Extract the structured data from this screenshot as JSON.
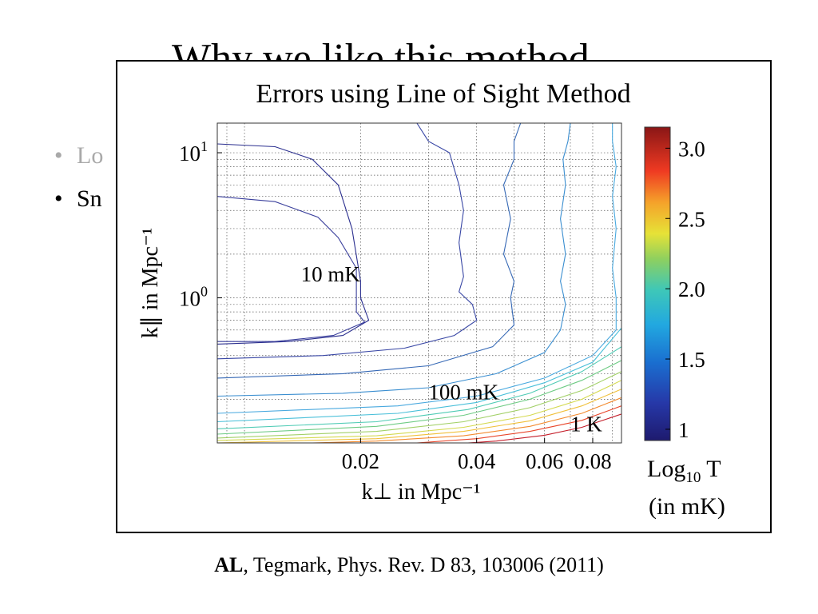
{
  "slide": {
    "title_partial": "Why we like this method",
    "bullets": [
      {
        "text": "Lo",
        "state": "dimmed"
      },
      {
        "text": "Sn",
        "state": "active"
      }
    ],
    "citation": {
      "bold_author": "AL",
      "rest": ", Tegmark, Phys. Rev. D 83, 103006 (2011)"
    }
  },
  "figure": {
    "title": "Errors using Line of Sight Method",
    "colorbar_label_line1": "Log",
    "colorbar_label_sub": "10",
    "colorbar_label_line1_tail": " T",
    "colorbar_label_line2": "(in mK)"
  },
  "chart_data": {
    "type": "contour",
    "title": "Errors using Line of Sight Method",
    "xlabel": "k⊥ in Mpc⁻¹",
    "ylabel": "k∥ in Mpc⁻¹",
    "x_scale": "log",
    "y_scale": "log",
    "xlim": [
      0.0085,
      0.095
    ],
    "ylim": [
      0.1,
      16
    ],
    "x_ticks": [
      {
        "value": 0.02,
        "label": "0.02"
      },
      {
        "value": 0.04,
        "label": "0.04"
      },
      {
        "value": 0.06,
        "label": "0.06"
      },
      {
        "value": 0.08,
        "label": "0.08"
      }
    ],
    "y_ticks": [
      {
        "value": 1,
        "label": "10",
        "exp": "0"
      },
      {
        "value": 10,
        "label": "10",
        "exp": "1"
      }
    ],
    "grid": true,
    "annotations": [
      {
        "text": "10 mK",
        "x": 0.014,
        "y": 1.3
      },
      {
        "text": "100 mK",
        "x": 0.03,
        "y": 0.2
      },
      {
        "text": "1 K",
        "x": 0.07,
        "y": 0.12
      }
    ],
    "colorbar": {
      "colormap": "jet",
      "range": [
        0.92,
        3.15
      ],
      "ticks": [
        1,
        1.5,
        2.0,
        2.5,
        3.0
      ],
      "tick_labels": [
        "1",
        "1.5",
        "2.0",
        "2.5",
        "3.0"
      ]
    },
    "contours": [
      {
        "level": 1.0,
        "color": "#2b2f8f",
        "points": [
          [
            0.0085,
            11.5
          ],
          [
            0.012,
            11
          ],
          [
            0.015,
            9
          ],
          [
            0.0175,
            6
          ],
          [
            0.019,
            3
          ],
          [
            0.02,
            1.3
          ],
          [
            0.02,
            1
          ],
          [
            0.021,
            0.7
          ],
          [
            0.018,
            0.55
          ],
          [
            0.013,
            0.5
          ],
          [
            0.0085,
            0.48
          ]
        ]
      },
      {
        "level": 1.1,
        "color": "#3a3f9c",
        "points": [
          [
            0.0085,
            5
          ],
          [
            0.012,
            4.6
          ],
          [
            0.0155,
            3.6
          ],
          [
            0.0175,
            2.6
          ],
          [
            0.0195,
            1.6
          ],
          [
            0.0195,
            1.1
          ],
          [
            0.0195,
            0.8
          ],
          [
            0.0205,
            0.68
          ],
          [
            0.017,
            0.55
          ],
          [
            0.012,
            0.5
          ],
          [
            0.0085,
            0.5
          ]
        ]
      },
      {
        "level": 1.2,
        "color": "#3947a5",
        "points": [
          [
            0.028,
            16
          ],
          [
            0.03,
            12
          ],
          [
            0.034,
            10
          ],
          [
            0.036,
            6
          ],
          [
            0.037,
            4
          ],
          [
            0.036,
            2.4
          ],
          [
            0.037,
            1.4
          ],
          [
            0.036,
            1.1
          ],
          [
            0.039,
            0.9
          ],
          [
            0.04,
            0.7
          ],
          [
            0.035,
            0.55
          ],
          [
            0.026,
            0.45
          ],
          [
            0.016,
            0.4
          ],
          [
            0.0085,
            0.38
          ]
        ]
      },
      {
        "level": 1.3,
        "color": "#3568b5",
        "points": [
          [
            0.052,
            16
          ],
          [
            0.05,
            12
          ],
          [
            0.05,
            9
          ],
          [
            0.047,
            6
          ],
          [
            0.049,
            3.5
          ],
          [
            0.047,
            2
          ],
          [
            0.05,
            1.3
          ],
          [
            0.049,
            1
          ],
          [
            0.05,
            0.65
          ],
          [
            0.044,
            0.46
          ],
          [
            0.03,
            0.34
          ],
          [
            0.018,
            0.3
          ],
          [
            0.0085,
            0.28
          ]
        ]
      },
      {
        "level": 1.4,
        "color": "#3a8ed0",
        "points": [
          [
            0.07,
            16
          ],
          [
            0.069,
            12
          ],
          [
            0.067,
            9
          ],
          [
            0.068,
            6
          ],
          [
            0.066,
            3.5
          ],
          [
            0.068,
            2
          ],
          [
            0.066,
            1.3
          ],
          [
            0.068,
            0.9
          ],
          [
            0.066,
            0.6
          ],
          [
            0.06,
            0.42
          ],
          [
            0.045,
            0.3
          ],
          [
            0.03,
            0.24
          ],
          [
            0.018,
            0.22
          ],
          [
            0.0085,
            0.21
          ]
        ]
      },
      {
        "level": 1.5,
        "color": "#49a9df",
        "points": [
          [
            0.09,
            16
          ],
          [
            0.09,
            12
          ],
          [
            0.092,
            8
          ],
          [
            0.09,
            5
          ],
          [
            0.092,
            3
          ],
          [
            0.09,
            1.6
          ],
          [
            0.092,
            1
          ],
          [
            0.092,
            0.6
          ],
          [
            0.08,
            0.4
          ],
          [
            0.06,
            0.28
          ],
          [
            0.04,
            0.21
          ],
          [
            0.025,
            0.18
          ],
          [
            0.0085,
            0.16
          ]
        ]
      },
      {
        "level": 1.6,
        "color": "#48bfd9",
        "points": [
          [
            0.095,
            0.62
          ],
          [
            0.08,
            0.36
          ],
          [
            0.06,
            0.26
          ],
          [
            0.04,
            0.19
          ],
          [
            0.025,
            0.16
          ],
          [
            0.0085,
            0.14
          ]
        ]
      },
      {
        "level": 1.75,
        "color": "#4fcbb5",
        "points": [
          [
            0.095,
            0.46
          ],
          [
            0.075,
            0.31
          ],
          [
            0.055,
            0.22
          ],
          [
            0.038,
            0.17
          ],
          [
            0.022,
            0.14
          ],
          [
            0.0085,
            0.125
          ]
        ]
      },
      {
        "level": 1.9,
        "color": "#6ecb84",
        "points": [
          [
            0.095,
            0.37
          ],
          [
            0.075,
            0.27
          ],
          [
            0.055,
            0.2
          ],
          [
            0.037,
            0.155
          ],
          [
            0.022,
            0.13
          ],
          [
            0.0085,
            0.115
          ]
        ]
      },
      {
        "level": 2.05,
        "color": "#a2d067",
        "points": [
          [
            0.095,
            0.31
          ],
          [
            0.075,
            0.23
          ],
          [
            0.055,
            0.175
          ],
          [
            0.037,
            0.14
          ],
          [
            0.022,
            0.12
          ],
          [
            0.0085,
            0.108
          ]
        ]
      },
      {
        "level": 2.2,
        "color": "#d4d94f",
        "points": [
          [
            0.095,
            0.27
          ],
          [
            0.075,
            0.2
          ],
          [
            0.055,
            0.155
          ],
          [
            0.037,
            0.128
          ],
          [
            0.022,
            0.112
          ],
          [
            0.0085,
            0.104
          ]
        ]
      },
      {
        "level": 2.4,
        "color": "#f0c03a",
        "points": [
          [
            0.095,
            0.235
          ],
          [
            0.075,
            0.18
          ],
          [
            0.055,
            0.142
          ],
          [
            0.037,
            0.12
          ],
          [
            0.022,
            0.107
          ],
          [
            0.0085,
            0.1
          ]
        ]
      },
      {
        "level": 2.6,
        "color": "#f38a2e",
        "points": [
          [
            0.095,
            0.205
          ],
          [
            0.075,
            0.16
          ],
          [
            0.055,
            0.13
          ],
          [
            0.037,
            0.112
          ],
          [
            0.022,
            0.103
          ],
          [
            0.015,
            0.1
          ]
        ]
      },
      {
        "level": 2.8,
        "color": "#e8452a",
        "points": [
          [
            0.095,
            0.18
          ],
          [
            0.075,
            0.143
          ],
          [
            0.055,
            0.12
          ],
          [
            0.04,
            0.107
          ],
          [
            0.028,
            0.1
          ]
        ]
      },
      {
        "level": 3.0,
        "color": "#c41e2a",
        "points": [
          [
            0.095,
            0.158
          ],
          [
            0.075,
            0.128
          ],
          [
            0.06,
            0.113
          ],
          [
            0.045,
            0.103
          ],
          [
            0.038,
            0.1
          ]
        ]
      }
    ]
  }
}
